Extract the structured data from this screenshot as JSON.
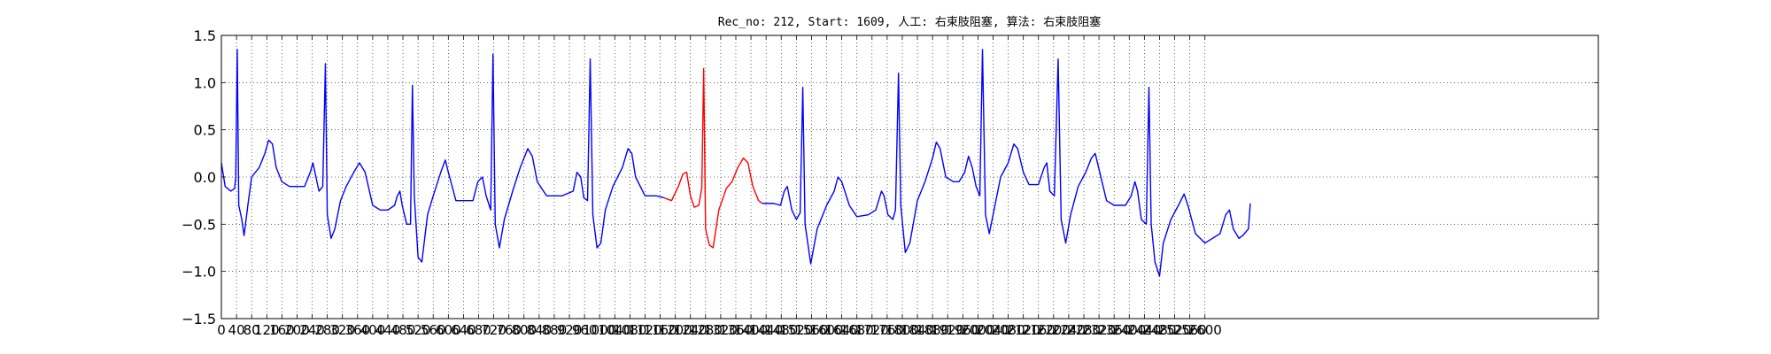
{
  "chart_data": {
    "type": "line",
    "title": "Rec_no: 212, Start: 1609, 人工: 右束肢阻塞, 算法: 右束肢阻塞",
    "xlabel": "",
    "ylabel": "",
    "xlim": [
      0,
      3640
    ],
    "ylim": [
      -1.5,
      1.5
    ],
    "grid": true,
    "x_ticks": [
      0,
      40,
      80,
      120,
      160,
      200,
      240,
      280,
      320,
      360,
      400,
      440,
      480,
      520,
      560,
      600,
      640,
      680,
      720,
      760,
      800,
      840,
      880,
      920,
      960,
      1000,
      1040,
      1080,
      1120,
      1160,
      1200,
      1240,
      1280,
      1320,
      1360,
      1400,
      1440,
      1480,
      1520,
      1560,
      1600,
      1640,
      1680,
      1720,
      1760,
      1800,
      1840,
      1880,
      1920,
      1960,
      2000,
      2040,
      2080,
      2120,
      2160,
      2200,
      2240,
      2280,
      2320,
      2360,
      2400,
      2440,
      2480,
      2520,
      2560,
      2600
    ],
    "x_tick_labels": [
      "0",
      "40",
      "80",
      "120",
      "160",
      "200",
      "240",
      "280",
      "320",
      "360",
      "400",
      "440",
      "480",
      "520",
      "560",
      "600",
      "640",
      "680",
      "720",
      "760",
      "800",
      "840",
      "880",
      "920",
      "960",
      "1000",
      "1040",
      "1080",
      "1120",
      "1160",
      "1200",
      "1240",
      "1280",
      "1320",
      "1360",
      "1400",
      "1440",
      "1480",
      "1520",
      "1560",
      "1600",
      "1640",
      "1680",
      "1720",
      "1760",
      "1800",
      "1840",
      "1880",
      "1920",
      "1960",
      "2000",
      "2040",
      "2080",
      "2120",
      "2160",
      "2200",
      "2240",
      "2280",
      "2320",
      "2360",
      "2400",
      "2440",
      "2480",
      "2520",
      "2560",
      "2600"
    ],
    "y_ticks": [
      -1.5,
      -1.0,
      -0.5,
      0.0,
      0.5,
      1.0,
      1.5
    ],
    "y_tick_labels": [
      "−1.5",
      "−1.0",
      "−0.5",
      "0.0",
      "0.5",
      "1.0",
      "1.5"
    ],
    "series": [
      {
        "name": "ecg-signal",
        "color": "#0000ff",
        "points": [
          [
            0,
            0.15
          ],
          [
            10,
            -0.1
          ],
          [
            25,
            -0.15
          ],
          [
            35,
            -0.12
          ],
          [
            38,
            0.0
          ],
          [
            42,
            1.35
          ],
          [
            46,
            -0.3
          ],
          [
            54,
            -0.45
          ],
          [
            60,
            -0.62
          ],
          [
            70,
            -0.3
          ],
          [
            80,
            0.0
          ],
          [
            100,
            0.1
          ],
          [
            115,
            0.25
          ],
          [
            125,
            0.39
          ],
          [
            135,
            0.35
          ],
          [
            145,
            0.1
          ],
          [
            160,
            -0.05
          ],
          [
            180,
            -0.1
          ],
          [
            220,
            -0.1
          ],
          [
            235,
            0.05
          ],
          [
            242,
            0.15
          ],
          [
            250,
            0.0
          ],
          [
            258,
            -0.15
          ],
          [
            268,
            -0.1
          ],
          [
            275,
            1.2
          ],
          [
            280,
            -0.4
          ],
          [
            290,
            -0.65
          ],
          [
            300,
            -0.55
          ],
          [
            315,
            -0.25
          ],
          [
            330,
            -0.1
          ],
          [
            350,
            0.05
          ],
          [
            365,
            0.15
          ],
          [
            380,
            0.05
          ],
          [
            400,
            -0.3
          ],
          [
            420,
            -0.35
          ],
          [
            440,
            -0.35
          ],
          [
            458,
            -0.3
          ],
          [
            465,
            -0.2
          ],
          [
            472,
            -0.15
          ],
          [
            478,
            -0.3
          ],
          [
            490,
            -0.5
          ],
          [
            500,
            -0.5
          ],
          [
            505,
            0.97
          ],
          [
            510,
            -0.2
          ],
          [
            520,
            -0.85
          ],
          [
            530,
            -0.9
          ],
          [
            545,
            -0.4
          ],
          [
            560,
            -0.2
          ],
          [
            580,
            0.05
          ],
          [
            592,
            0.18
          ],
          [
            600,
            0.05
          ],
          [
            620,
            -0.25
          ],
          [
            640,
            -0.25
          ],
          [
            665,
            -0.25
          ],
          [
            678,
            -0.05
          ],
          [
            690,
            0.0
          ],
          [
            700,
            -0.2
          ],
          [
            712,
            -0.35
          ],
          [
            718,
            1.3
          ],
          [
            724,
            -0.5
          ],
          [
            735,
            -0.75
          ],
          [
            748,
            -0.45
          ],
          [
            770,
            -0.15
          ],
          [
            790,
            0.1
          ],
          [
            810,
            0.3
          ],
          [
            822,
            0.22
          ],
          [
            835,
            -0.05
          ],
          [
            860,
            -0.2
          ],
          [
            900,
            -0.2
          ],
          [
            930,
            -0.15
          ],
          [
            940,
            0.05
          ],
          [
            950,
            0.0
          ],
          [
            958,
            -0.22
          ],
          [
            968,
            -0.25
          ],
          [
            975,
            1.25
          ],
          [
            982,
            -0.4
          ],
          [
            993,
            -0.75
          ],
          [
            1003,
            -0.7
          ],
          [
            1015,
            -0.35
          ],
          [
            1035,
            -0.1
          ],
          [
            1060,
            0.1
          ],
          [
            1075,
            0.3
          ],
          [
            1085,
            0.25
          ],
          [
            1095,
            0.0
          ],
          [
            1120,
            -0.2
          ],
          [
            1150,
            -0.2
          ],
          [
            1170,
            -0.22
          ]
        ]
      },
      {
        "name": "ecg-segment-highlight",
        "color": "#ff0000",
        "points": [
          [
            1170,
            -0.22
          ],
          [
            1190,
            -0.25
          ],
          [
            1208,
            -0.1
          ],
          [
            1220,
            0.03
          ],
          [
            1230,
            0.05
          ],
          [
            1240,
            -0.2
          ],
          [
            1250,
            -0.32
          ],
          [
            1262,
            -0.3
          ],
          [
            1270,
            -0.12
          ],
          [
            1275,
            1.15
          ],
          [
            1280,
            -0.55
          ],
          [
            1290,
            -0.72
          ],
          [
            1300,
            -0.75
          ],
          [
            1315,
            -0.35
          ],
          [
            1335,
            -0.12
          ],
          [
            1350,
            -0.05
          ],
          [
            1365,
            0.1
          ],
          [
            1380,
            0.2
          ],
          [
            1392,
            0.15
          ],
          [
            1405,
            -0.1
          ],
          [
            1420,
            -0.25
          ],
          [
            1430,
            -0.28
          ]
        ]
      },
      {
        "name": "ecg-signal-continued",
        "color": "#0000ff",
        "points": [
          [
            1430,
            -0.28
          ],
          [
            1460,
            -0.28
          ],
          [
            1478,
            -0.3
          ],
          [
            1488,
            -0.15
          ],
          [
            1496,
            -0.1
          ],
          [
            1508,
            -0.35
          ],
          [
            1520,
            -0.45
          ],
          [
            1530,
            -0.38
          ],
          [
            1537,
            0.95
          ],
          [
            1543,
            -0.5
          ],
          [
            1558,
            -0.92
          ],
          [
            1575,
            -0.55
          ],
          [
            1600,
            -0.3
          ],
          [
            1620,
            -0.15
          ],
          [
            1630,
            0.0
          ],
          [
            1640,
            -0.05
          ],
          [
            1660,
            -0.3
          ],
          [
            1680,
            -0.42
          ],
          [
            1710,
            -0.4
          ],
          [
            1730,
            -0.35
          ],
          [
            1745,
            -0.15
          ],
          [
            1752,
            -0.2
          ],
          [
            1762,
            -0.4
          ],
          [
            1775,
            -0.45
          ],
          [
            1782,
            -0.35
          ],
          [
            1790,
            1.1
          ],
          [
            1796,
            -0.3
          ],
          [
            1808,
            -0.8
          ],
          [
            1820,
            -0.7
          ],
          [
            1840,
            -0.25
          ],
          [
            1860,
            -0.05
          ],
          [
            1880,
            0.2
          ],
          [
            1890,
            0.37
          ],
          [
            1900,
            0.3
          ],
          [
            1915,
            0.0
          ],
          [
            1935,
            -0.05
          ],
          [
            1950,
            -0.05
          ],
          [
            1965,
            0.05
          ],
          [
            1975,
            0.22
          ],
          [
            1985,
            0.1
          ],
          [
            1995,
            -0.1
          ],
          [
            2005,
            -0.2
          ],
          [
            2012,
            1.35
          ],
          [
            2020,
            -0.4
          ],
          [
            2030,
            -0.6
          ],
          [
            2045,
            -0.3
          ],
          [
            2060,
            0.0
          ],
          [
            2080,
            0.15
          ],
          [
            2095,
            0.35
          ],
          [
            2105,
            0.3
          ],
          [
            2120,
            0.05
          ],
          [
            2135,
            -0.08
          ],
          [
            2160,
            -0.08
          ],
          [
            2175,
            0.1
          ],
          [
            2182,
            0.15
          ],
          [
            2190,
            -0.15
          ],
          [
            2202,
            -0.2
          ],
          [
            2212,
            1.25
          ],
          [
            2220,
            -0.45
          ],
          [
            2232,
            -0.7
          ],
          [
            2245,
            -0.4
          ],
          [
            2265,
            -0.1
          ],
          [
            2285,
            0.05
          ],
          [
            2300,
            0.2
          ],
          [
            2310,
            0.25
          ],
          [
            2322,
            0.05
          ],
          [
            2340,
            -0.25
          ],
          [
            2360,
            -0.3
          ],
          [
            2390,
            -0.3
          ],
          [
            2405,
            -0.2
          ],
          [
            2415,
            -0.05
          ],
          [
            2422,
            -0.15
          ],
          [
            2432,
            -0.45
          ],
          [
            2445,
            -0.5
          ],
          [
            2452,
            0.95
          ],
          [
            2458,
            -0.5
          ],
          [
            2468,
            -0.9
          ],
          [
            2480,
            -1.05
          ],
          [
            2490,
            -0.7
          ],
          [
            2510,
            -0.45
          ],
          [
            2530,
            -0.3
          ],
          [
            2545,
            -0.18
          ],
          [
            2555,
            -0.3
          ],
          [
            2575,
            -0.6
          ],
          [
            2600,
            -0.7
          ],
          [
            2620,
            -0.65
          ],
          [
            2640,
            -0.6
          ],
          [
            2655,
            -0.4
          ],
          [
            2665,
            -0.35
          ],
          [
            2675,
            -0.55
          ],
          [
            2690,
            -0.65
          ],
          [
            2700,
            -0.62
          ],
          [
            2715,
            -0.55
          ],
          [
            2720,
            -0.28
          ]
        ]
      }
    ]
  }
}
